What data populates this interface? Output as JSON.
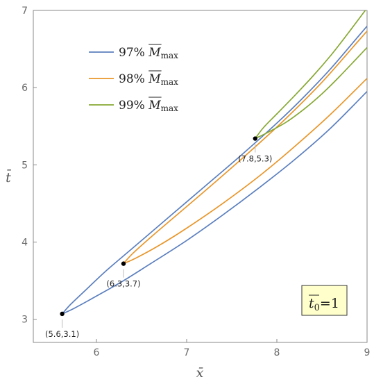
{
  "chart_data": {
    "type": "line",
    "xlabel": "x̄",
    "ylabel": "t̄",
    "xlim": [
      5.3,
      9.0
    ],
    "ylim": [
      2.7,
      7.0
    ],
    "x_ticks": [
      "6",
      "7",
      "8",
      "9"
    ],
    "y_ticks": [
      "3",
      "4",
      "5",
      "6",
      "7"
    ],
    "x_tick_values": [
      6,
      7,
      8,
      9
    ],
    "y_tick_values": [
      3,
      4,
      5,
      6,
      7
    ],
    "legend_position": "top-left",
    "series": [
      {
        "name_main": "97% ",
        "name_M": "M",
        "name_sub": "max",
        "color": "#5b7fbe",
        "vertex": [
          5.62,
          3.07
        ],
        "upper": [
          [
            5.62,
            3.07
          ],
          [
            5.72,
            3.2
          ],
          [
            5.9,
            3.4
          ],
          [
            6.1,
            3.62
          ],
          [
            6.4,
            3.92
          ],
          [
            6.8,
            4.32
          ],
          [
            7.2,
            4.72
          ],
          [
            7.6,
            5.12
          ],
          [
            8.0,
            5.54
          ],
          [
            8.3,
            5.88
          ],
          [
            8.6,
            6.25
          ],
          [
            8.9,
            6.66
          ],
          [
            9.15,
            7.0
          ]
        ],
        "lower": [
          [
            5.62,
            3.07
          ],
          [
            5.75,
            3.14
          ],
          [
            6.0,
            3.3
          ],
          [
            6.3,
            3.5
          ],
          [
            6.6,
            3.72
          ],
          [
            7.0,
            4.02
          ],
          [
            7.4,
            4.35
          ],
          [
            7.8,
            4.7
          ],
          [
            8.2,
            5.07
          ],
          [
            8.6,
            5.48
          ],
          [
            9.0,
            5.95
          ]
        ]
      },
      {
        "name_main": "98% ",
        "name_M": "M",
        "name_sub": "max",
        "color": "#e8962a",
        "vertex": [
          6.3,
          3.72
        ],
        "upper": [
          [
            6.3,
            3.72
          ],
          [
            6.4,
            3.85
          ],
          [
            6.6,
            4.06
          ],
          [
            6.9,
            4.36
          ],
          [
            7.3,
            4.76
          ],
          [
            7.7,
            5.17
          ],
          [
            8.1,
            5.6
          ],
          [
            8.5,
            6.07
          ],
          [
            8.9,
            6.6
          ],
          [
            9.2,
            7.0
          ]
        ],
        "lower": [
          [
            6.3,
            3.72
          ],
          [
            6.45,
            3.8
          ],
          [
            6.7,
            3.96
          ],
          [
            7.0,
            4.18
          ],
          [
            7.4,
            4.5
          ],
          [
            7.8,
            4.85
          ],
          [
            8.2,
            5.24
          ],
          [
            8.6,
            5.66
          ],
          [
            9.0,
            6.12
          ]
        ]
      },
      {
        "name_main": "99% ",
        "name_M": "M",
        "name_sub": "max",
        "color": "#86a832",
        "vertex": [
          7.76,
          5.34
        ],
        "upper": [
          [
            7.76,
            5.34
          ],
          [
            7.85,
            5.48
          ],
          [
            8.0,
            5.66
          ],
          [
            8.2,
            5.9
          ],
          [
            8.4,
            6.15
          ],
          [
            8.6,
            6.42
          ],
          [
            8.8,
            6.72
          ],
          [
            8.98,
            7.0
          ]
        ],
        "lower": [
          [
            7.76,
            5.34
          ],
          [
            7.9,
            5.42
          ],
          [
            8.1,
            5.55
          ],
          [
            8.3,
            5.72
          ],
          [
            8.5,
            5.92
          ],
          [
            8.7,
            6.15
          ],
          [
            9.0,
            6.52
          ]
        ]
      }
    ],
    "annotations": [
      {
        "label": "(5.6,3.1)",
        "x": 5.62,
        "y": 3.07
      },
      {
        "label": "(6.3,3.7)",
        "x": 6.3,
        "y": 3.72
      },
      {
        "label": "(7.8,5.3)",
        "x": 7.76,
        "y": 5.34
      }
    ],
    "inset": {
      "t_main": "t",
      "t_sub": "0",
      "t_value": "=1",
      "bg": "#ffffcc"
    }
  }
}
